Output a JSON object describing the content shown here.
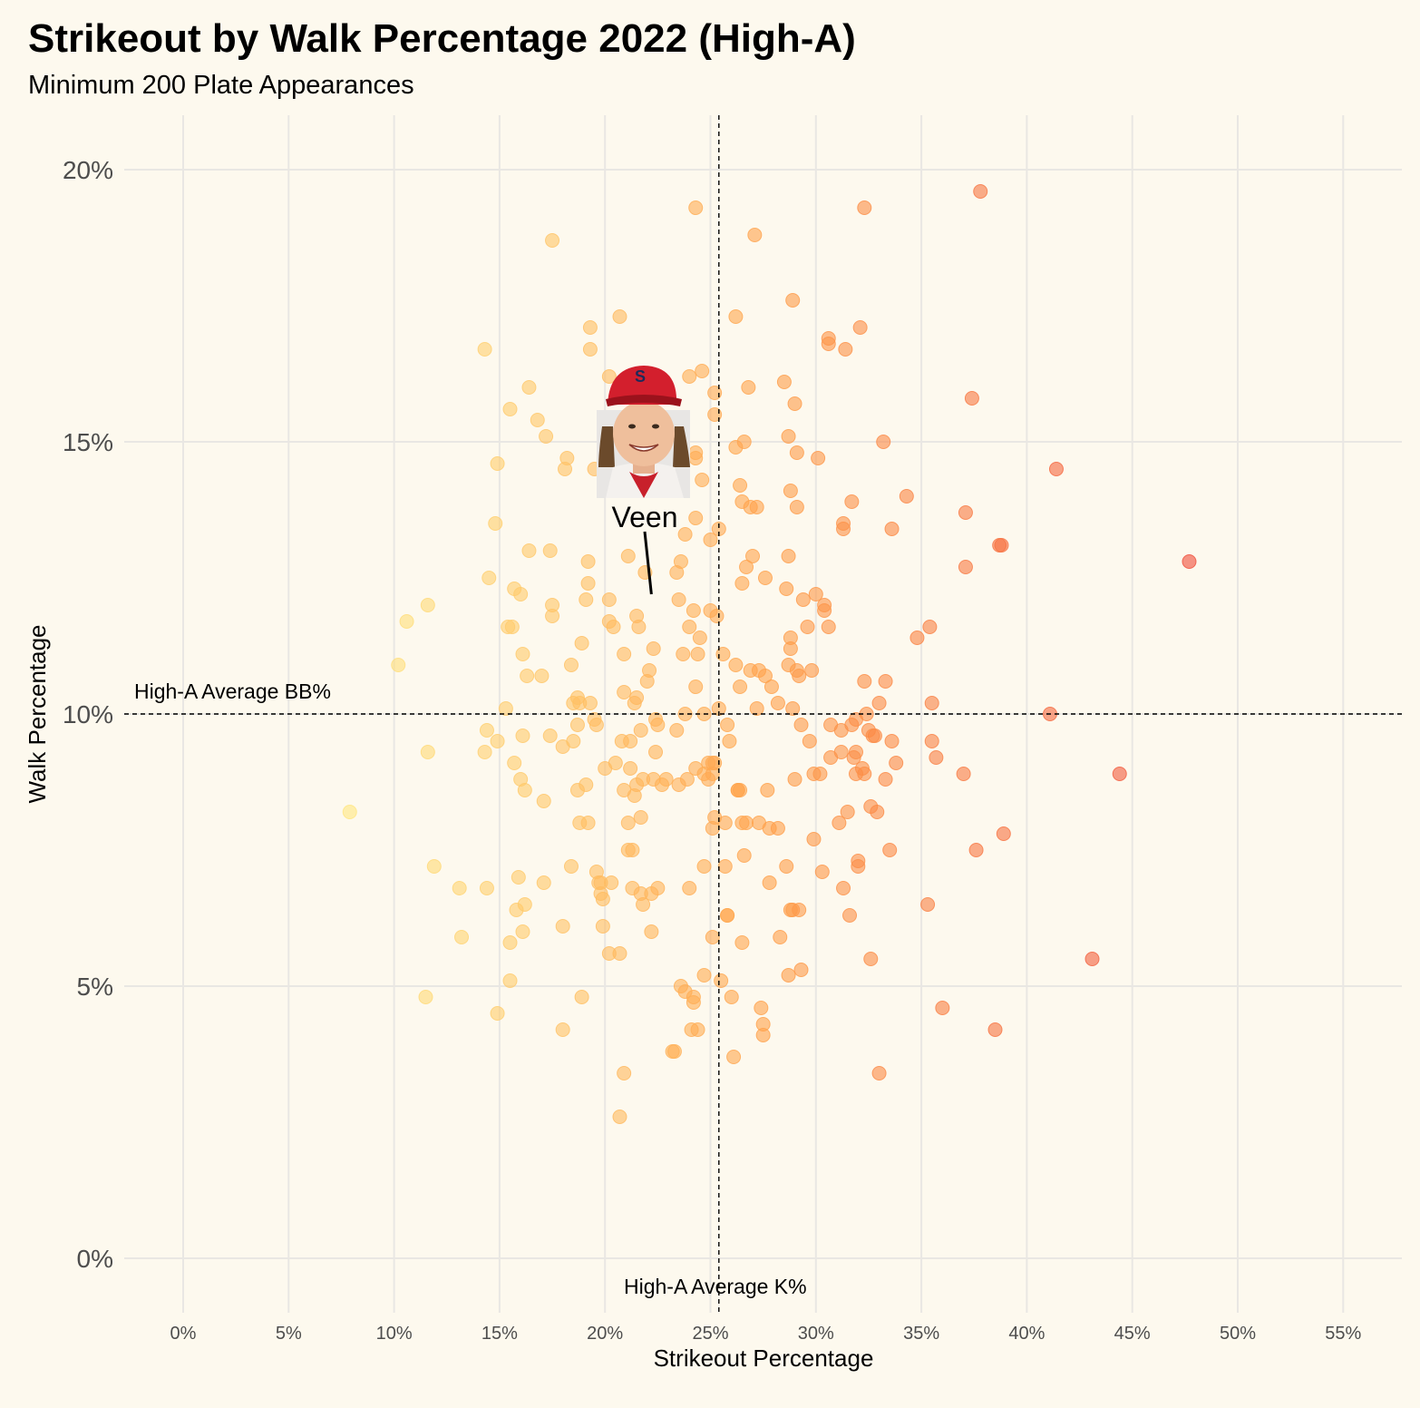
{
  "header": {
    "title": "Strikeout by Walk Percentage 2022 (High-A)",
    "subtitle": "Minimum 200 Plate Appearances"
  },
  "chart_data": {
    "type": "scatter",
    "title": "Strikeout by Walk Percentage 2022 (High-A)",
    "subtitle": "Minimum 200 Plate Appearances",
    "xlabel": "Strikeout Percentage",
    "ylabel": "Walk Percentage",
    "xlim": [
      0,
      55
    ],
    "ylim": [
      0,
      20
    ],
    "x_ticks": [
      0,
      5,
      10,
      15,
      20,
      25,
      30,
      35,
      40,
      45,
      50,
      55
    ],
    "x_tick_labels": [
      "0%",
      "5%",
      "10%",
      "15%",
      "20%",
      "25%",
      "30%",
      "35%",
      "40%",
      "45%",
      "50%",
      "55%"
    ],
    "y_ticks": [
      0,
      5,
      10,
      15,
      20
    ],
    "y_tick_labels": [
      "0%",
      "5%",
      "10%",
      "15%",
      "20%"
    ],
    "grid": true,
    "color_scale": {
      "low": "#ffe680",
      "mid": "#ffa04a",
      "high": "#f04d3a"
    },
    "reference_lines": [
      {
        "axis": "x",
        "value": 25.4,
        "label": "High-A Average K%"
      },
      {
        "axis": "y",
        "value": 10.0,
        "label": "High-A Average BB%"
      }
    ],
    "highlight": {
      "name": "Veen",
      "x": 22.2,
      "y": 12.2
    },
    "points": [
      [
        7.9,
        8.2
      ],
      [
        10.2,
        10.9
      ],
      [
        10.6,
        11.7
      ],
      [
        11.5,
        4.8
      ],
      [
        11.6,
        12.0
      ],
      [
        11.6,
        9.3
      ],
      [
        11.9,
        7.2
      ],
      [
        13.1,
        6.8
      ],
      [
        13.2,
        5.9
      ],
      [
        14.3,
        16.7
      ],
      [
        14.3,
        9.3
      ],
      [
        14.4,
        9.7
      ],
      [
        14.4,
        6.8
      ],
      [
        14.5,
        12.5
      ],
      [
        14.8,
        13.5
      ],
      [
        14.9,
        14.6
      ],
      [
        14.9,
        4.5
      ],
      [
        14.9,
        9.5
      ],
      [
        15.3,
        10.1
      ],
      [
        15.4,
        11.6
      ],
      [
        15.5,
        15.6
      ],
      [
        15.5,
        5.8
      ],
      [
        15.5,
        5.1
      ],
      [
        15.6,
        11.6
      ],
      [
        15.7,
        9.1
      ],
      [
        15.7,
        12.3
      ],
      [
        15.8,
        6.4
      ],
      [
        15.9,
        7.0
      ],
      [
        16.0,
        12.2
      ],
      [
        16.0,
        8.8
      ],
      [
        16.1,
        11.1
      ],
      [
        16.1,
        9.6
      ],
      [
        16.1,
        6.0
      ],
      [
        16.2,
        8.6
      ],
      [
        16.2,
        6.5
      ],
      [
        16.3,
        10.7
      ],
      [
        16.4,
        16.0
      ],
      [
        16.4,
        13.0
      ],
      [
        16.8,
        15.4
      ],
      [
        17.0,
        10.7
      ],
      [
        17.1,
        8.4
      ],
      [
        17.1,
        6.9
      ],
      [
        17.2,
        15.1
      ],
      [
        17.4,
        13.0
      ],
      [
        17.4,
        9.6
      ],
      [
        17.5,
        18.7
      ],
      [
        17.5,
        12.0
      ],
      [
        17.5,
        11.8
      ],
      [
        18.0,
        9.4
      ],
      [
        18.0,
        6.1
      ],
      [
        18.0,
        4.2
      ],
      [
        18.1,
        14.5
      ],
      [
        18.2,
        14.7
      ],
      [
        18.4,
        10.9
      ],
      [
        18.4,
        7.2
      ],
      [
        18.5,
        10.2
      ],
      [
        18.5,
        9.5
      ],
      [
        18.7,
        8.6
      ],
      [
        18.7,
        9.8
      ],
      [
        18.7,
        10.3
      ],
      [
        18.8,
        8.0
      ],
      [
        18.8,
        10.2
      ],
      [
        18.9,
        4.8
      ],
      [
        18.9,
        11.3
      ],
      [
        19.1,
        8.7
      ],
      [
        19.1,
        12.1
      ],
      [
        19.2,
        8.0
      ],
      [
        19.2,
        12.4
      ],
      [
        19.2,
        12.8
      ],
      [
        19.3,
        10.2
      ],
      [
        19.3,
        17.1
      ],
      [
        19.3,
        16.7
      ],
      [
        19.5,
        9.9
      ],
      [
        19.5,
        14.5
      ],
      [
        19.6,
        7.1
      ],
      [
        19.6,
        9.8
      ],
      [
        19.7,
        6.9
      ],
      [
        19.8,
        6.9
      ],
      [
        19.8,
        6.7
      ],
      [
        19.9,
        6.6
      ],
      [
        19.9,
        6.1
      ],
      [
        20.0,
        9.0
      ],
      [
        20.2,
        5.6
      ],
      [
        20.2,
        12.1
      ],
      [
        20.2,
        11.7
      ],
      [
        20.2,
        16.2
      ],
      [
        20.3,
        6.9
      ],
      [
        20.4,
        11.6
      ],
      [
        20.5,
        9.1
      ],
      [
        20.7,
        17.3
      ],
      [
        20.7,
        2.6
      ],
      [
        20.7,
        5.6
      ],
      [
        20.8,
        9.5
      ],
      [
        20.9,
        10.4
      ],
      [
        20.9,
        3.4
      ],
      [
        20.9,
        8.6
      ],
      [
        20.9,
        11.1
      ],
      [
        21.1,
        7.5
      ],
      [
        21.1,
        8.0
      ],
      [
        21.1,
        12.9
      ],
      [
        21.2,
        9.5
      ],
      [
        21.2,
        9.0
      ],
      [
        21.3,
        7.5
      ],
      [
        21.3,
        6.8
      ],
      [
        21.4,
        10.2
      ],
      [
        21.4,
        8.5
      ],
      [
        21.5,
        11.8
      ],
      [
        21.5,
        10.3
      ],
      [
        21.5,
        8.7
      ],
      [
        21.6,
        11.6
      ],
      [
        21.7,
        6.7
      ],
      [
        21.7,
        9.7
      ],
      [
        21.7,
        8.1
      ],
      [
        21.8,
        8.8
      ],
      [
        21.8,
        6.5
      ],
      [
        21.9,
        12.6
      ],
      [
        22.0,
        10.6
      ],
      [
        22.1,
        10.8
      ],
      [
        22.2,
        6.7
      ],
      [
        22.2,
        6.0
      ],
      [
        22.3,
        11.2
      ],
      [
        22.3,
        8.8
      ],
      [
        22.4,
        9.3
      ],
      [
        22.4,
        9.9
      ],
      [
        22.5,
        9.8
      ],
      [
        22.5,
        6.8
      ],
      [
        22.7,
        8.7
      ],
      [
        22.9,
        8.8
      ],
      [
        23.2,
        3.8
      ],
      [
        23.3,
        3.8
      ],
      [
        23.4,
        9.7
      ],
      [
        23.4,
        12.6
      ],
      [
        23.5,
        8.7
      ],
      [
        23.5,
        12.1
      ],
      [
        23.6,
        12.8
      ],
      [
        23.6,
        5.0
      ],
      [
        23.7,
        11.1
      ],
      [
        23.8,
        13.3
      ],
      [
        23.8,
        10.0
      ],
      [
        23.8,
        4.9
      ],
      [
        23.9,
        8.8
      ],
      [
        24.0,
        6.8
      ],
      [
        24.0,
        11.6
      ],
      [
        24.0,
        16.2
      ],
      [
        24.1,
        4.2
      ],
      [
        24.2,
        11.9
      ],
      [
        24.2,
        4.7
      ],
      [
        24.2,
        4.8
      ],
      [
        24.3,
        19.3
      ],
      [
        24.3,
        13.6
      ],
      [
        24.3,
        10.5
      ],
      [
        24.3,
        9.0
      ],
      [
        24.3,
        14.8
      ],
      [
        24.3,
        14.7
      ],
      [
        24.4,
        11.1
      ],
      [
        24.4,
        4.2
      ],
      [
        24.5,
        11.4
      ],
      [
        24.6,
        14.3
      ],
      [
        24.6,
        16.3
      ],
      [
        24.7,
        8.9
      ],
      [
        24.7,
        7.2
      ],
      [
        24.7,
        10.0
      ],
      [
        24.7,
        5.2
      ],
      [
        24.9,
        9.1
      ],
      [
        24.9,
        8.8
      ],
      [
        25.0,
        13.2
      ],
      [
        25.0,
        11.9
      ],
      [
        25.1,
        8.9
      ],
      [
        25.1,
        7.9
      ],
      [
        25.1,
        9.1
      ],
      [
        25.1,
        5.9
      ],
      [
        25.2,
        15.9
      ],
      [
        25.2,
        15.5
      ],
      [
        25.2,
        9.1
      ],
      [
        25.2,
        8.1
      ],
      [
        25.3,
        11.8
      ],
      [
        25.4,
        13.4
      ],
      [
        25.4,
        10.1
      ],
      [
        25.5,
        5.1
      ],
      [
        25.6,
        11.1
      ],
      [
        25.7,
        8.0
      ],
      [
        25.7,
        7.2
      ],
      [
        25.8,
        6.3
      ],
      [
        25.8,
        6.3
      ],
      [
        25.8,
        9.8
      ],
      [
        25.9,
        9.5
      ],
      [
        26.0,
        4.8
      ],
      [
        26.1,
        3.7
      ],
      [
        26.2,
        14.9
      ],
      [
        26.2,
        17.3
      ],
      [
        26.2,
        10.9
      ],
      [
        26.3,
        8.6
      ],
      [
        26.3,
        8.6
      ],
      [
        26.4,
        8.6
      ],
      [
        26.4,
        10.5
      ],
      [
        26.4,
        14.2
      ],
      [
        26.5,
        13.9
      ],
      [
        26.5,
        12.4
      ],
      [
        26.5,
        8.0
      ],
      [
        26.5,
        5.8
      ],
      [
        26.6,
        15.0
      ],
      [
        26.6,
        7.4
      ],
      [
        26.7,
        12.7
      ],
      [
        26.7,
        8.0
      ],
      [
        26.8,
        16.0
      ],
      [
        26.9,
        13.8
      ],
      [
        26.9,
        10.8
      ],
      [
        27.0,
        12.9
      ],
      [
        27.1,
        18.8
      ],
      [
        27.2,
        10.1
      ],
      [
        27.2,
        13.8
      ],
      [
        27.3,
        10.8
      ],
      [
        27.3,
        8.0
      ],
      [
        27.4,
        4.6
      ],
      [
        27.5,
        4.3
      ],
      [
        27.5,
        4.1
      ],
      [
        27.6,
        12.5
      ],
      [
        27.6,
        10.7
      ],
      [
        27.7,
        8.6
      ],
      [
        27.8,
        7.9
      ],
      [
        27.8,
        6.9
      ],
      [
        27.9,
        10.5
      ],
      [
        28.2,
        7.9
      ],
      [
        28.2,
        10.2
      ],
      [
        28.3,
        5.9
      ],
      [
        28.5,
        16.1
      ],
      [
        28.6,
        12.3
      ],
      [
        28.6,
        7.2
      ],
      [
        28.7,
        5.2
      ],
      [
        28.7,
        15.1
      ],
      [
        28.7,
        12.9
      ],
      [
        28.7,
        10.9
      ],
      [
        28.8,
        6.4
      ],
      [
        28.8,
        11.4
      ],
      [
        28.8,
        11.2
      ],
      [
        28.8,
        14.1
      ],
      [
        28.9,
        10.1
      ],
      [
        28.9,
        6.4
      ],
      [
        28.9,
        17.6
      ],
      [
        29.0,
        8.8
      ],
      [
        29.0,
        15.7
      ],
      [
        29.1,
        13.8
      ],
      [
        29.1,
        14.8
      ],
      [
        29.1,
        10.8
      ],
      [
        29.2,
        6.4
      ],
      [
        29.2,
        10.7
      ],
      [
        29.3,
        5.3
      ],
      [
        29.3,
        9.8
      ],
      [
        29.4,
        12.1
      ],
      [
        29.6,
        11.6
      ],
      [
        29.7,
        9.5
      ],
      [
        29.8,
        10.8
      ],
      [
        29.9,
        7.7
      ],
      [
        29.9,
        8.9
      ],
      [
        30.0,
        12.2
      ],
      [
        30.1,
        14.7
      ],
      [
        30.2,
        8.9
      ],
      [
        30.3,
        7.1
      ],
      [
        30.4,
        11.9
      ],
      [
        30.4,
        12.0
      ],
      [
        30.6,
        16.9
      ],
      [
        30.6,
        16.8
      ],
      [
        30.6,
        11.6
      ],
      [
        30.7,
        9.8
      ],
      [
        30.7,
        9.2
      ],
      [
        31.1,
        8.0
      ],
      [
        31.2,
        9.7
      ],
      [
        31.2,
        9.3
      ],
      [
        31.3,
        13.5
      ],
      [
        31.3,
        13.4
      ],
      [
        31.3,
        6.8
      ],
      [
        31.4,
        16.7
      ],
      [
        31.5,
        8.2
      ],
      [
        31.6,
        6.3
      ],
      [
        31.7,
        13.9
      ],
      [
        31.7,
        9.8
      ],
      [
        31.8,
        9.2
      ],
      [
        31.9,
        9.9
      ],
      [
        31.9,
        9.3
      ],
      [
        31.9,
        8.9
      ],
      [
        32.0,
        7.3
      ],
      [
        32.0,
        7.2
      ],
      [
        32.1,
        17.1
      ],
      [
        32.2,
        9.0
      ],
      [
        32.3,
        19.3
      ],
      [
        32.3,
        8.9
      ],
      [
        32.3,
        10.6
      ],
      [
        32.4,
        10.0
      ],
      [
        32.5,
        9.7
      ],
      [
        32.6,
        8.3
      ],
      [
        32.6,
        5.5
      ],
      [
        32.7,
        9.6
      ],
      [
        32.8,
        9.6
      ],
      [
        32.9,
        8.2
      ],
      [
        33.0,
        10.2
      ],
      [
        33.0,
        3.4
      ],
      [
        33.2,
        15.0
      ],
      [
        33.3,
        10.6
      ],
      [
        33.3,
        8.8
      ],
      [
        33.5,
        7.5
      ],
      [
        33.6,
        9.5
      ],
      [
        33.6,
        13.4
      ],
      [
        33.8,
        9.1
      ],
      [
        34.3,
        14.0
      ],
      [
        34.8,
        11.4
      ],
      [
        35.3,
        6.5
      ],
      [
        35.4,
        11.6
      ],
      [
        35.5,
        9.5
      ],
      [
        35.5,
        10.2
      ],
      [
        35.7,
        9.2
      ],
      [
        36.0,
        4.6
      ],
      [
        37.0,
        8.9
      ],
      [
        37.1,
        13.7
      ],
      [
        37.1,
        12.7
      ],
      [
        37.4,
        15.8
      ],
      [
        37.6,
        7.5
      ],
      [
        37.8,
        19.6
      ],
      [
        38.5,
        4.2
      ],
      [
        38.7,
        13.1
      ],
      [
        38.8,
        13.1
      ],
      [
        38.9,
        7.8
      ],
      [
        41.1,
        10.0
      ],
      [
        41.4,
        14.5
      ],
      [
        43.1,
        5.5
      ],
      [
        44.4,
        8.9
      ],
      [
        47.7,
        12.8
      ]
    ]
  }
}
